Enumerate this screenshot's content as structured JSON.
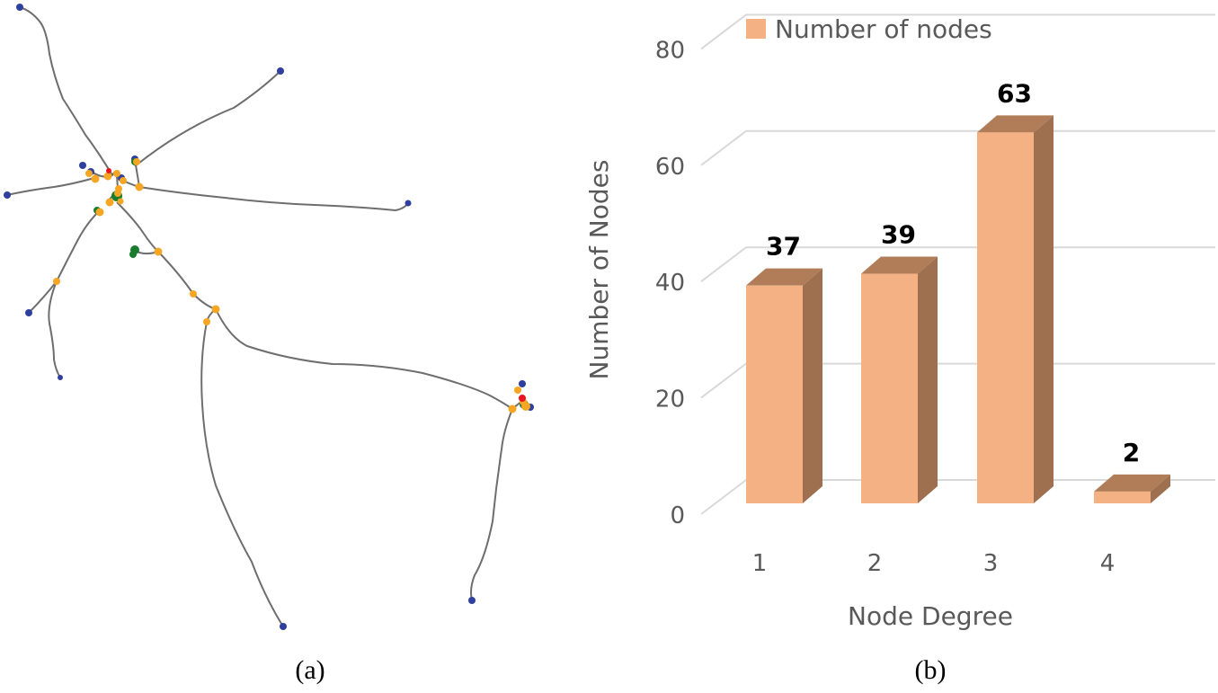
{
  "captions": {
    "a": "(a)",
    "b": "(b)"
  },
  "network": {
    "node_colors": {
      "blue": "#2e3f9e",
      "orange": "#f5a623",
      "green": "#1a7d2e",
      "red": "#e8131f"
    },
    "edge_color": "#6e6e6e"
  },
  "chart_data": {
    "type": "bar",
    "style": "3d-column",
    "title": "",
    "categories": [
      "1",
      "2",
      "3",
      "4"
    ],
    "series": [
      {
        "name": "Number of nodes",
        "values": [
          37,
          39,
          63,
          2
        ],
        "color": "#f4b183"
      }
    ],
    "data_labels": [
      "37",
      "39",
      "63",
      "2"
    ],
    "xlabel": "Node Degree",
    "ylabel": "Number of Nodes",
    "ylim": [
      0,
      80
    ],
    "yticks": [
      "0",
      "20",
      "40",
      "60",
      "80"
    ],
    "grid": true,
    "legend": {
      "position": "top",
      "entries": [
        "Number of nodes"
      ]
    }
  }
}
